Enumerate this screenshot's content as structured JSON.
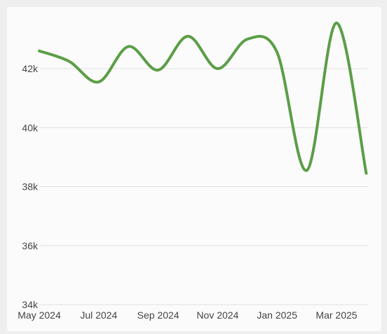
{
  "chart_data": {
    "type": "line",
    "title": "",
    "xlabel": "",
    "ylabel": "",
    "x": [
      "2024-05",
      "2024-06",
      "2024-07",
      "2024-08",
      "2024-09",
      "2024-10",
      "2024-11",
      "2024-12",
      "2025-01",
      "2025-02",
      "2025-03",
      "2025-04"
    ],
    "x_tick_labels": [
      {
        "month": "2024-05",
        "label": "May 2024"
      },
      {
        "month": "2024-07",
        "label": "Jul 2024"
      },
      {
        "month": "2024-09",
        "label": "Sep 2024"
      },
      {
        "month": "2024-11",
        "label": "Nov 2024"
      },
      {
        "month": "2025-01",
        "label": "Jan 2025"
      },
      {
        "month": "2025-03",
        "label": "Mar 2025"
      }
    ],
    "series": [
      {
        "values": [
          42600,
          42250,
          41550,
          42750,
          41950,
          43100,
          42000,
          43000,
          42550,
          38550,
          43550,
          38450
        ]
      }
    ],
    "ylim": [
      34000,
      44000
    ],
    "y_ticks": [
      {
        "value": 34000,
        "label": "34k"
      },
      {
        "value": 36000,
        "label": "36k"
      },
      {
        "value": 38000,
        "label": "38k"
      },
      {
        "value": 40000,
        "label": "40k"
      },
      {
        "value": 42000,
        "label": "42k"
      }
    ],
    "grid": true,
    "legend": "none",
    "colors": {
      "line": "#5b9e47",
      "grid": "#e0e0e0",
      "text": "#444444"
    }
  }
}
